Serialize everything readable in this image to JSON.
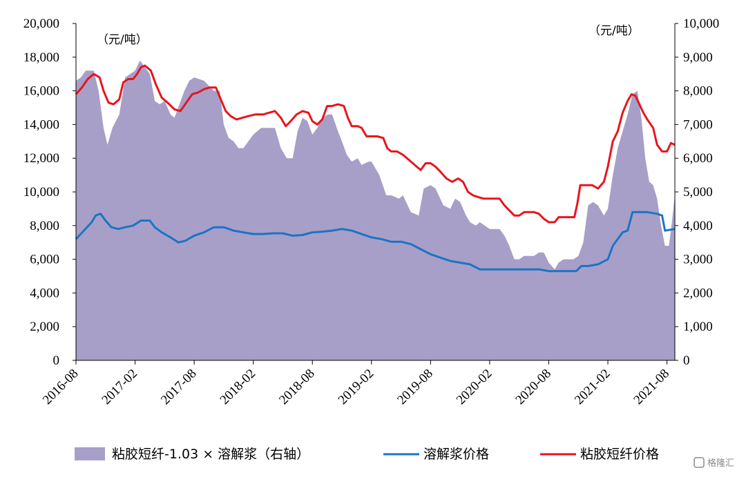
{
  "chart_data": {
    "type": "line+area",
    "unit_left": "（元/吨）",
    "unit_right": "（元/吨）",
    "y_left": {
      "min": 0,
      "max": 20000,
      "step": 2000,
      "ticks": [
        "0",
        "2,000",
        "4,000",
        "6,000",
        "8,000",
        "10,000",
        "12,000",
        "14,000",
        "16,000",
        "18,000",
        "20,000"
      ]
    },
    "y_right": {
      "min": 0,
      "max": 10000,
      "step": 1000,
      "ticks": [
        "0",
        "1,000",
        "2,000",
        "3,000",
        "4,000",
        "5,000",
        "6,000",
        "7,000",
        "8,000",
        "9,000",
        "10,000"
      ]
    },
    "x_range": [
      0,
      60.8
    ],
    "x_ticks": [
      {
        "x": 0,
        "label": "2016-08"
      },
      {
        "x": 6,
        "label": "2017-02"
      },
      {
        "x": 12,
        "label": "2017-08"
      },
      {
        "x": 18,
        "label": "2018-02"
      },
      {
        "x": 24,
        "label": "2018-08"
      },
      {
        "x": 30,
        "label": "2019-02"
      },
      {
        "x": 36,
        "label": "2019-08"
      },
      {
        "x": 42,
        "label": "2020-02"
      },
      {
        "x": 48,
        "label": "2020-08"
      },
      {
        "x": 54,
        "label": "2021-02"
      },
      {
        "x": 60,
        "label": "2021-08"
      }
    ],
    "series": [
      {
        "name": "粘胶短纤-1.03 × 溶解浆（右轴）",
        "kind": "area",
        "axis": "right",
        "color": "#a79fc8",
        "points": [
          [
            0,
            8300
          ],
          [
            0.5,
            8400
          ],
          [
            1,
            8600
          ],
          [
            1.8,
            8600
          ],
          [
            2.3,
            8000
          ],
          [
            2.8,
            6900
          ],
          [
            3.2,
            6400
          ],
          [
            3.7,
            6900
          ],
          [
            4.4,
            7300
          ],
          [
            5,
            8400
          ],
          [
            5.5,
            8500
          ],
          [
            6,
            8600
          ],
          [
            6.5,
            8900
          ],
          [
            7,
            8700
          ],
          [
            7.5,
            8500
          ],
          [
            8,
            7700
          ],
          [
            8.5,
            7600
          ],
          [
            9,
            7700
          ],
          [
            9.6,
            7300
          ],
          [
            10,
            7200
          ],
          [
            11,
            8000
          ],
          [
            11.5,
            8300
          ],
          [
            12,
            8400
          ],
          [
            13,
            8300
          ],
          [
            14,
            8000
          ],
          [
            14.6,
            8000
          ],
          [
            15,
            7000
          ],
          [
            15.5,
            6600
          ],
          [
            16,
            6500
          ],
          [
            16.5,
            6300
          ],
          [
            17,
            6300
          ],
          [
            17.5,
            6500
          ],
          [
            18,
            6700
          ],
          [
            18.8,
            6900
          ],
          [
            19.6,
            6900
          ],
          [
            20.2,
            6900
          ],
          [
            20.8,
            6300
          ],
          [
            21.4,
            6000
          ],
          [
            22,
            6000
          ],
          [
            22.5,
            6800
          ],
          [
            23,
            7200
          ],
          [
            23.5,
            7100
          ],
          [
            24,
            6700
          ],
          [
            24.5,
            6900
          ],
          [
            25,
            7200
          ],
          [
            25.6,
            7300
          ],
          [
            26,
            7300
          ],
          [
            26.6,
            6800
          ],
          [
            27,
            6500
          ],
          [
            27.5,
            6100
          ],
          [
            28,
            5900
          ],
          [
            28.6,
            6000
          ],
          [
            29,
            5800
          ],
          [
            29.7,
            5900
          ],
          [
            30,
            5900
          ],
          [
            30.8,
            5500
          ],
          [
            31.5,
            4900
          ],
          [
            32,
            4900
          ],
          [
            32.8,
            4800
          ],
          [
            33.2,
            4900
          ],
          [
            34,
            4400
          ],
          [
            34.8,
            4300
          ],
          [
            35.3,
            5100
          ],
          [
            36,
            5200
          ],
          [
            36.5,
            5100
          ],
          [
            37.3,
            4600
          ],
          [
            38,
            4500
          ],
          [
            38.5,
            4800
          ],
          [
            39,
            4700
          ],
          [
            39.6,
            4300
          ],
          [
            40,
            4100
          ],
          [
            40.6,
            4000
          ],
          [
            41,
            4100
          ],
          [
            41.5,
            4000
          ],
          [
            42,
            3900
          ],
          [
            42.6,
            3900
          ],
          [
            43,
            3900
          ],
          [
            43.5,
            3700
          ],
          [
            44,
            3400
          ],
          [
            44.5,
            3000
          ],
          [
            45,
            3000
          ],
          [
            45.5,
            3100
          ],
          [
            46,
            3100
          ],
          [
            46.5,
            3100
          ],
          [
            47,
            3200
          ],
          [
            47.5,
            3200
          ],
          [
            48,
            2900
          ],
          [
            48.6,
            2700
          ],
          [
            49,
            2900
          ],
          [
            49.5,
            3000
          ],
          [
            50,
            3000
          ],
          [
            50.5,
            3000
          ],
          [
            51,
            3100
          ],
          [
            51.5,
            3500
          ],
          [
            52,
            4600
          ],
          [
            52.5,
            4700
          ],
          [
            53,
            4600
          ],
          [
            53.6,
            4300
          ],
          [
            54,
            4500
          ],
          [
            54.5,
            5500
          ],
          [
            55,
            6300
          ],
          [
            55.5,
            6800
          ],
          [
            56,
            7300
          ],
          [
            56.5,
            7900
          ],
          [
            57,
            8000
          ],
          [
            57.4,
            7200
          ],
          [
            57.8,
            6000
          ],
          [
            58.2,
            5300
          ],
          [
            58.6,
            5200
          ],
          [
            59,
            4800
          ],
          [
            59.4,
            4000
          ],
          [
            59.8,
            3400
          ],
          [
            60.2,
            3400
          ],
          [
            60.5,
            4100
          ],
          [
            60.8,
            4900
          ]
        ]
      },
      {
        "name": "溶解浆价格",
        "kind": "line",
        "axis": "right",
        "color": "#1a74c6",
        "points": [
          [
            0,
            3600
          ],
          [
            0.8,
            3850
          ],
          [
            1.6,
            4100
          ],
          [
            2,
            4300
          ],
          [
            2.5,
            4350
          ],
          [
            3,
            4150
          ],
          [
            3.6,
            3950
          ],
          [
            4.3,
            3900
          ],
          [
            5,
            3950
          ],
          [
            5.8,
            4000
          ],
          [
            6.6,
            4150
          ],
          [
            7.5,
            4150
          ],
          [
            8,
            3950
          ],
          [
            8.7,
            3800
          ],
          [
            9.6,
            3650
          ],
          [
            10.4,
            3500
          ],
          [
            11.1,
            3550
          ],
          [
            12,
            3700
          ],
          [
            13,
            3800
          ],
          [
            14,
            3950
          ],
          [
            15,
            3950
          ],
          [
            16,
            3850
          ],
          [
            17,
            3800
          ],
          [
            18,
            3750
          ],
          [
            19,
            3750
          ],
          [
            20,
            3770
          ],
          [
            21,
            3770
          ],
          [
            22,
            3700
          ],
          [
            23,
            3720
          ],
          [
            24,
            3800
          ],
          [
            25,
            3820
          ],
          [
            26,
            3850
          ],
          [
            27,
            3900
          ],
          [
            28,
            3850
          ],
          [
            29,
            3750
          ],
          [
            30,
            3650
          ],
          [
            31,
            3600
          ],
          [
            32,
            3520
          ],
          [
            33,
            3520
          ],
          [
            34,
            3450
          ],
          [
            35,
            3300
          ],
          [
            36,
            3150
          ],
          [
            37,
            3050
          ],
          [
            38,
            2950
          ],
          [
            39,
            2900
          ],
          [
            40,
            2850
          ],
          [
            41,
            2700
          ],
          [
            42,
            2700
          ],
          [
            43,
            2700
          ],
          [
            44,
            2700
          ],
          [
            45,
            2700
          ],
          [
            46,
            2700
          ],
          [
            47,
            2700
          ],
          [
            48,
            2650
          ],
          [
            49,
            2650
          ],
          [
            50,
            2650
          ],
          [
            50.8,
            2650
          ],
          [
            51.3,
            2800
          ],
          [
            52,
            2800
          ],
          [
            53,
            2850
          ],
          [
            54,
            3000
          ],
          [
            54.5,
            3400
          ],
          [
            55,
            3600
          ],
          [
            55.5,
            3800
          ],
          [
            56,
            3850
          ],
          [
            56.5,
            4400
          ],
          [
            57,
            4400
          ],
          [
            58,
            4400
          ],
          [
            59,
            4350
          ],
          [
            59.5,
            4300
          ],
          [
            59.8,
            3850
          ],
          [
            60.8,
            3900
          ]
        ]
      },
      {
        "name": "粘胶短纤价格",
        "kind": "line",
        "axis": "left",
        "color": "#e8141c",
        "points": [
          [
            0,
            15800
          ],
          [
            0.6,
            16200
          ],
          [
            1.2,
            16700
          ],
          [
            1.8,
            17000
          ],
          [
            2.4,
            16800
          ],
          [
            2.8,
            16000
          ],
          [
            3.3,
            15300
          ],
          [
            3.8,
            15200
          ],
          [
            4.4,
            15500
          ],
          [
            4.8,
            16500
          ],
          [
            5.3,
            16700
          ],
          [
            5.8,
            16700
          ],
          [
            6.2,
            17000
          ],
          [
            6.6,
            17400
          ],
          [
            7,
            17500
          ],
          [
            7.6,
            17200
          ],
          [
            8.1,
            16400
          ],
          [
            8.7,
            15600
          ],
          [
            9.3,
            15300
          ],
          [
            10,
            14900
          ],
          [
            10.6,
            14800
          ],
          [
            11.2,
            15300
          ],
          [
            11.8,
            15800
          ],
          [
            12.4,
            15900
          ],
          [
            13,
            16100
          ],
          [
            13.6,
            16200
          ],
          [
            14.2,
            16200
          ],
          [
            14.7,
            15500
          ],
          [
            15.2,
            14800
          ],
          [
            15.7,
            14500
          ],
          [
            16.3,
            14300
          ],
          [
            16.9,
            14400
          ],
          [
            17.5,
            14500
          ],
          [
            18.2,
            14600
          ],
          [
            19,
            14600
          ],
          [
            19.6,
            14700
          ],
          [
            20.2,
            14800
          ],
          [
            20.8,
            14400
          ],
          [
            21.3,
            13900
          ],
          [
            21.8,
            14200
          ],
          [
            22.4,
            14600
          ],
          [
            23,
            14800
          ],
          [
            23.6,
            14700
          ],
          [
            24,
            14200
          ],
          [
            24.5,
            14000
          ],
          [
            25,
            14300
          ],
          [
            25.5,
            15100
          ],
          [
            26,
            15100
          ],
          [
            26.6,
            15200
          ],
          [
            27.2,
            15100
          ],
          [
            27.6,
            14400
          ],
          [
            28,
            13900
          ],
          [
            28.6,
            13900
          ],
          [
            29,
            13800
          ],
          [
            29.5,
            13300
          ],
          [
            30,
            13300
          ],
          [
            30.6,
            13300
          ],
          [
            31.2,
            13200
          ],
          [
            31.6,
            12600
          ],
          [
            32,
            12400
          ],
          [
            32.6,
            12400
          ],
          [
            33.2,
            12200
          ],
          [
            33.8,
            11900
          ],
          [
            34.4,
            11600
          ],
          [
            35,
            11300
          ],
          [
            35.5,
            11700
          ],
          [
            36,
            11700
          ],
          [
            36.5,
            11500
          ],
          [
            37,
            11200
          ],
          [
            37.6,
            10800
          ],
          [
            38.2,
            10600
          ],
          [
            38.8,
            10800
          ],
          [
            39.3,
            10600
          ],
          [
            39.8,
            10000
          ],
          [
            40.3,
            9800
          ],
          [
            40.8,
            9700
          ],
          [
            41.4,
            9600
          ],
          [
            42,
            9600
          ],
          [
            42.6,
            9600
          ],
          [
            43,
            9600
          ],
          [
            43.5,
            9200
          ],
          [
            44,
            8900
          ],
          [
            44.5,
            8600
          ],
          [
            45,
            8600
          ],
          [
            45.5,
            8800
          ],
          [
            46,
            8800
          ],
          [
            46.5,
            8800
          ],
          [
            47,
            8700
          ],
          [
            47.5,
            8400
          ],
          [
            48,
            8200
          ],
          [
            48.6,
            8200
          ],
          [
            49,
            8500
          ],
          [
            49.5,
            8500
          ],
          [
            50,
            8500
          ],
          [
            50.6,
            8500
          ],
          [
            50.9,
            9300
          ],
          [
            51.2,
            10400
          ],
          [
            51.8,
            10400
          ],
          [
            52.4,
            10400
          ],
          [
            53,
            10200
          ],
          [
            53.6,
            10600
          ],
          [
            54,
            11500
          ],
          [
            54.5,
            13000
          ],
          [
            55,
            13600
          ],
          [
            55.5,
            14700
          ],
          [
            56,
            15400
          ],
          [
            56.4,
            15800
          ],
          [
            56.8,
            15700
          ],
          [
            57.2,
            15200
          ],
          [
            57.6,
            14700
          ],
          [
            58,
            14300
          ],
          [
            58.6,
            13800
          ],
          [
            59,
            12800
          ],
          [
            59.5,
            12400
          ],
          [
            60,
            12400
          ],
          [
            60.4,
            12900
          ],
          [
            60.8,
            12800
          ]
        ]
      }
    ],
    "legend": {
      "position": "bottom"
    }
  },
  "watermark": "格隆汇"
}
